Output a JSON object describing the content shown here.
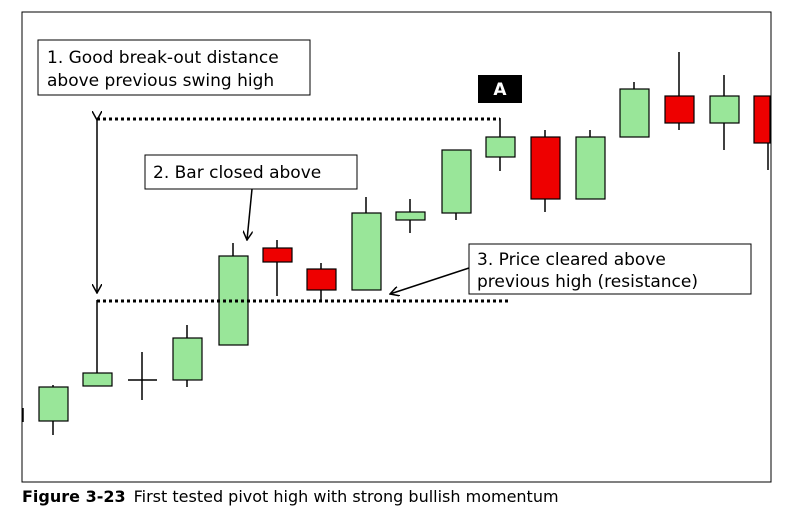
{
  "callouts": [
    {
      "lines": [
        "1. Good break-out distance",
        "above previous swing high"
      ]
    },
    {
      "lines": [
        "2. Bar closed above"
      ]
    },
    {
      "lines": [
        "3. Price cleared above",
        "previous high (resistance)"
      ]
    }
  ],
  "marker": "A",
  "caption": {
    "label": "Figure 3-23",
    "text": "First tested pivot high with strong bullish momentum"
  }
}
